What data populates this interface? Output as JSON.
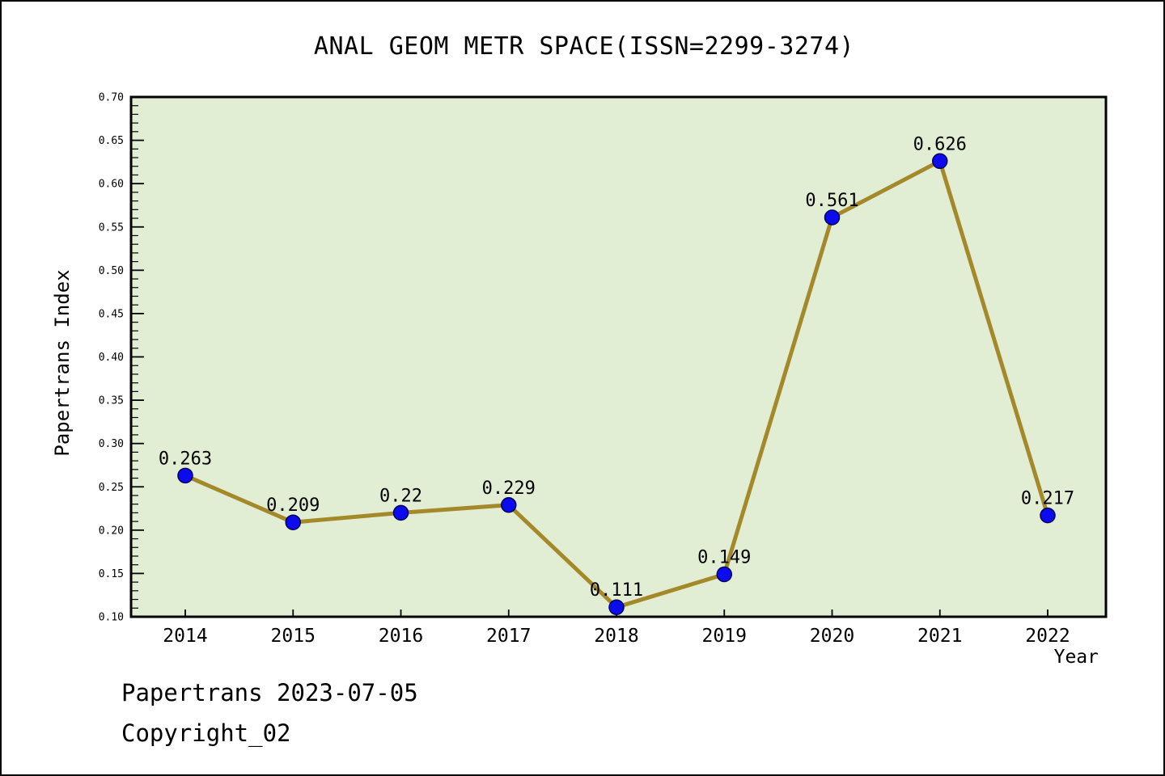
{
  "title": "ANAL GEOM METR SPACE(ISSN=2299-3274)",
  "footer": {
    "line1": "Papertrans 2023-07-05",
    "line2": "Copyright_02"
  },
  "chart_data": {
    "type": "line",
    "title": "ANAL GEOM METR SPACE(ISSN=2299-3274)",
    "xlabel": "Year",
    "ylabel": "Papertrans Index",
    "x": [
      2014,
      2015,
      2016,
      2017,
      2018,
      2019,
      2020,
      2021,
      2022
    ],
    "series": [
      {
        "name": "Papertrans Index",
        "values": [
          0.263,
          0.209,
          0.22,
          0.229,
          0.111,
          0.149,
          0.561,
          0.626,
          0.217
        ]
      }
    ],
    "point_labels": [
      "0.263",
      "0.209",
      "0.22",
      "0.229",
      "0.111",
      "0.149",
      "0.561",
      "0.626",
      "0.217"
    ],
    "ylim": [
      0.1,
      0.7
    ],
    "y_major_step": 0.05,
    "y_minor_step": 0.01,
    "grid": false,
    "legend": "none",
    "colors": {
      "plot_bg": "#e1eed3",
      "line": "#a4892b",
      "marker": "#0b0bee",
      "marker_edge": "#00005a",
      "frame": "#000000",
      "text": "#000000"
    }
  }
}
